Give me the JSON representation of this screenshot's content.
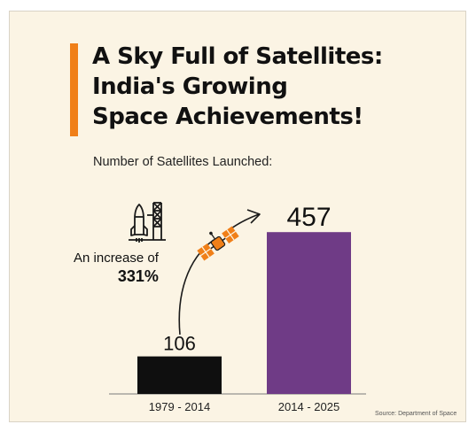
{
  "headline": {
    "lines": [
      "A Sky Full of Satellites:",
      "India's Growing",
      "Space Achievements!"
    ]
  },
  "subtitle": "Number of Satellites Launched:",
  "annotation": {
    "text": "An increase of",
    "value": "331%"
  },
  "source": "Source: Department of Space",
  "colors": {
    "background": "#fbf4e4",
    "accent": "#f07f18",
    "bar_1": "#0f0f0f",
    "bar_2": "#6f3b86"
  },
  "icons": [
    "rocket-launchpad-icon",
    "satellite-icon",
    "curved-arrow-icon"
  ],
  "chart_data": {
    "type": "bar",
    "categories": [
      "1979 - 2014",
      "2014 - 2025"
    ],
    "values": [
      106,
      457
    ],
    "value_labels": [
      "106",
      "457"
    ],
    "title": "Number of Satellites Launched:",
    "xlabel": "",
    "ylabel": "",
    "ylim": [
      0,
      500
    ],
    "grid": false,
    "legend": "none"
  }
}
